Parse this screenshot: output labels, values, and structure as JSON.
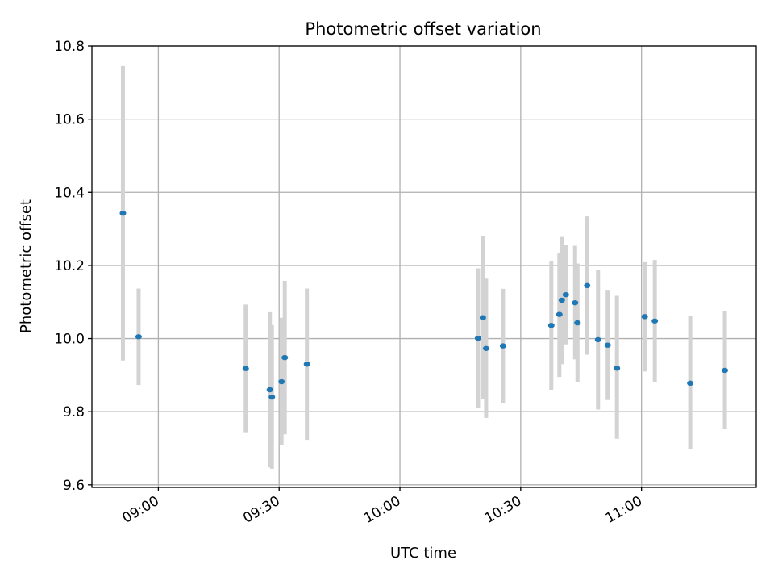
{
  "chart_data": {
    "type": "scatter",
    "title": "Photometric offset variation",
    "xlabel": "UTC time",
    "ylabel": "Photometric offset",
    "x_ticks": [
      "09:00",
      "09:30",
      "10:00",
      "10:30",
      "11:00"
    ],
    "y_ticks": [
      "9.6",
      "9.8",
      "10.0",
      "10.2",
      "10.4",
      "10.6",
      "10.8"
    ],
    "xlim": [
      "08:43:30",
      "11:28:30"
    ],
    "ylim": [
      9.593,
      10.8
    ],
    "grid": true,
    "colors": {
      "point": "#1f77b4",
      "errorbar": "#d3d3d3",
      "grid": "#b0b0b0"
    },
    "points": [
      {
        "x": "08:51:12",
        "y": 10.343,
        "err_low": 9.94,
        "err_high": 10.745
      },
      {
        "x": "08:55:06",
        "y": 10.005,
        "err_low": 9.873,
        "err_high": 10.137
      },
      {
        "x": "09:21:42",
        "y": 9.918,
        "err_low": 9.744,
        "err_high": 10.093
      },
      {
        "x": "09:27:42",
        "y": 9.86,
        "err_low": 9.648,
        "err_high": 10.072
      },
      {
        "x": "09:28:12",
        "y": 9.84,
        "err_low": 9.644,
        "err_high": 10.037
      },
      {
        "x": "09:30:36",
        "y": 9.882,
        "err_low": 9.708,
        "err_high": 10.057
      },
      {
        "x": "09:31:24",
        "y": 9.948,
        "err_low": 9.738,
        "err_high": 10.158
      },
      {
        "x": "09:36:54",
        "y": 9.93,
        "err_low": 9.723,
        "err_high": 10.137
      },
      {
        "x": "10:19:24",
        "y": 10.001,
        "err_low": 9.81,
        "err_high": 10.192
      },
      {
        "x": "10:20:36",
        "y": 10.057,
        "err_low": 9.834,
        "err_high": 10.28
      },
      {
        "x": "10:21:24",
        "y": 9.973,
        "err_low": 9.783,
        "err_high": 10.164
      },
      {
        "x": "10:25:36",
        "y": 9.98,
        "err_low": 9.823,
        "err_high": 10.136
      },
      {
        "x": "10:37:36",
        "y": 10.036,
        "err_low": 9.86,
        "err_high": 10.213
      },
      {
        "x": "10:39:36",
        "y": 10.066,
        "err_low": 9.895,
        "err_high": 10.235
      },
      {
        "x": "10:40:12",
        "y": 10.105,
        "err_low": 9.93,
        "err_high": 10.278
      },
      {
        "x": "10:41:12",
        "y": 10.12,
        "err_low": 9.984,
        "err_high": 10.257
      },
      {
        "x": "10:43:30",
        "y": 10.098,
        "err_low": 9.943,
        "err_high": 10.254
      },
      {
        "x": "10:44:06",
        "y": 10.043,
        "err_low": 9.882,
        "err_high": 10.205
      },
      {
        "x": "10:46:30",
        "y": 10.145,
        "err_low": 9.956,
        "err_high": 10.334
      },
      {
        "x": "10:49:12",
        "y": 9.997,
        "err_low": 9.806,
        "err_high": 10.188
      },
      {
        "x": "10:51:36",
        "y": 9.982,
        "err_low": 9.832,
        "err_high": 10.131
      },
      {
        "x": "10:53:54",
        "y": 9.919,
        "err_low": 9.726,
        "err_high": 10.117
      },
      {
        "x": "11:00:48",
        "y": 10.06,
        "err_low": 9.91,
        "err_high": 10.209
      },
      {
        "x": "11:03:18",
        "y": 10.048,
        "err_low": 9.882,
        "err_high": 10.215
      },
      {
        "x": "11:12:06",
        "y": 9.878,
        "err_low": 9.697,
        "err_high": 10.061
      },
      {
        "x": "11:20:42",
        "y": 9.913,
        "err_low": 9.752,
        "err_high": 10.075
      }
    ]
  }
}
